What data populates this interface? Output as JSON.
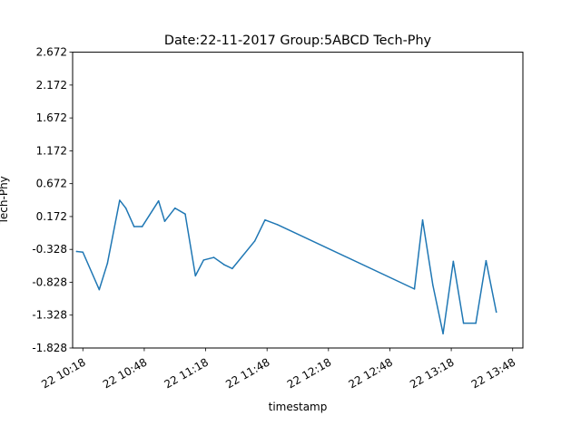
{
  "chart_data": {
    "type": "line",
    "title": "Date:22-11-2017 Group:5ABCD Tech-Phy",
    "xlabel": "timestamp",
    "ylabel": "Tech-Phy",
    "x_range": [
      "22-11-2017 10:13",
      "22-11-2017 13:53"
    ],
    "ylim": [
      -1.828,
      2.672
    ],
    "y_ticks": [
      -1.828,
      -1.328,
      -0.828,
      -0.328,
      0.172,
      0.672,
      1.172,
      1.672,
      2.172,
      2.672
    ],
    "y_tick_labels": [
      "-1.828",
      "-1.328",
      "-0.828",
      "-0.328",
      "0.172",
      "0.672",
      "1.172",
      "1.672",
      "2.172",
      "2.672"
    ],
    "x_ticks": [
      "22-11-2017 10:18",
      "22-11-2017 10:48",
      "22-11-2017 11:18",
      "22-11-2017 11:48",
      "22-11-2017 12:18",
      "22-11-2017 12:48",
      "22-11-2017 13:18",
      "22-11-2017 13:48"
    ],
    "x_tick_labels": [
      "22 10:18",
      "22 10:48",
      "22 11:18",
      "22 11:48",
      "22 12:18",
      "22 12:48",
      "22 13:18",
      "22 13:48"
    ],
    "grid": false,
    "series": [
      {
        "color": "#1f77b4",
        "points": [
          {
            "x": "22-11-2017 10:15",
            "y": -0.36
          },
          {
            "x": "22-11-2017 10:18",
            "y": -0.37
          },
          {
            "x": "22-11-2017 10:26",
            "y": -0.94
          },
          {
            "x": "22-11-2017 10:30",
            "y": -0.54
          },
          {
            "x": "22-11-2017 10:36",
            "y": 0.42
          },
          {
            "x": "22-11-2017 10:39",
            "y": 0.3
          },
          {
            "x": "22-11-2017 10:43",
            "y": 0.02
          },
          {
            "x": "22-11-2017 10:47",
            "y": 0.02
          },
          {
            "x": "22-11-2017 10:55",
            "y": 0.41
          },
          {
            "x": "22-11-2017 10:58",
            "y": 0.1
          },
          {
            "x": "22-11-2017 11:03",
            "y": 0.3
          },
          {
            "x": "22-11-2017 11:08",
            "y": 0.21
          },
          {
            "x": "22-11-2017 11:13",
            "y": -0.73
          },
          {
            "x": "22-11-2017 11:17",
            "y": -0.49
          },
          {
            "x": "22-11-2017 11:22",
            "y": -0.45
          },
          {
            "x": "22-11-2017 11:27",
            "y": -0.56
          },
          {
            "x": "22-11-2017 11:31",
            "y": -0.62
          },
          {
            "x": "22-11-2017 11:42",
            "y": -0.2
          },
          {
            "x": "22-11-2017 11:47",
            "y": 0.12
          },
          {
            "x": "22-11-2017 11:53",
            "y": 0.05
          },
          {
            "x": "22-11-2017 13:00",
            "y": -0.93
          },
          {
            "x": "22-11-2017 13:04",
            "y": 0.12
          },
          {
            "x": "22-11-2017 13:09",
            "y": -0.87
          },
          {
            "x": "22-11-2017 13:14",
            "y": -1.61
          },
          {
            "x": "22-11-2017 13:19",
            "y": -0.51
          },
          {
            "x": "22-11-2017 13:24",
            "y": -1.45
          },
          {
            "x": "22-11-2017 13:30",
            "y": -1.45
          },
          {
            "x": "22-11-2017 13:35",
            "y": -0.5
          },
          {
            "x": "22-11-2017 13:40",
            "y": -1.28
          }
        ]
      }
    ]
  }
}
